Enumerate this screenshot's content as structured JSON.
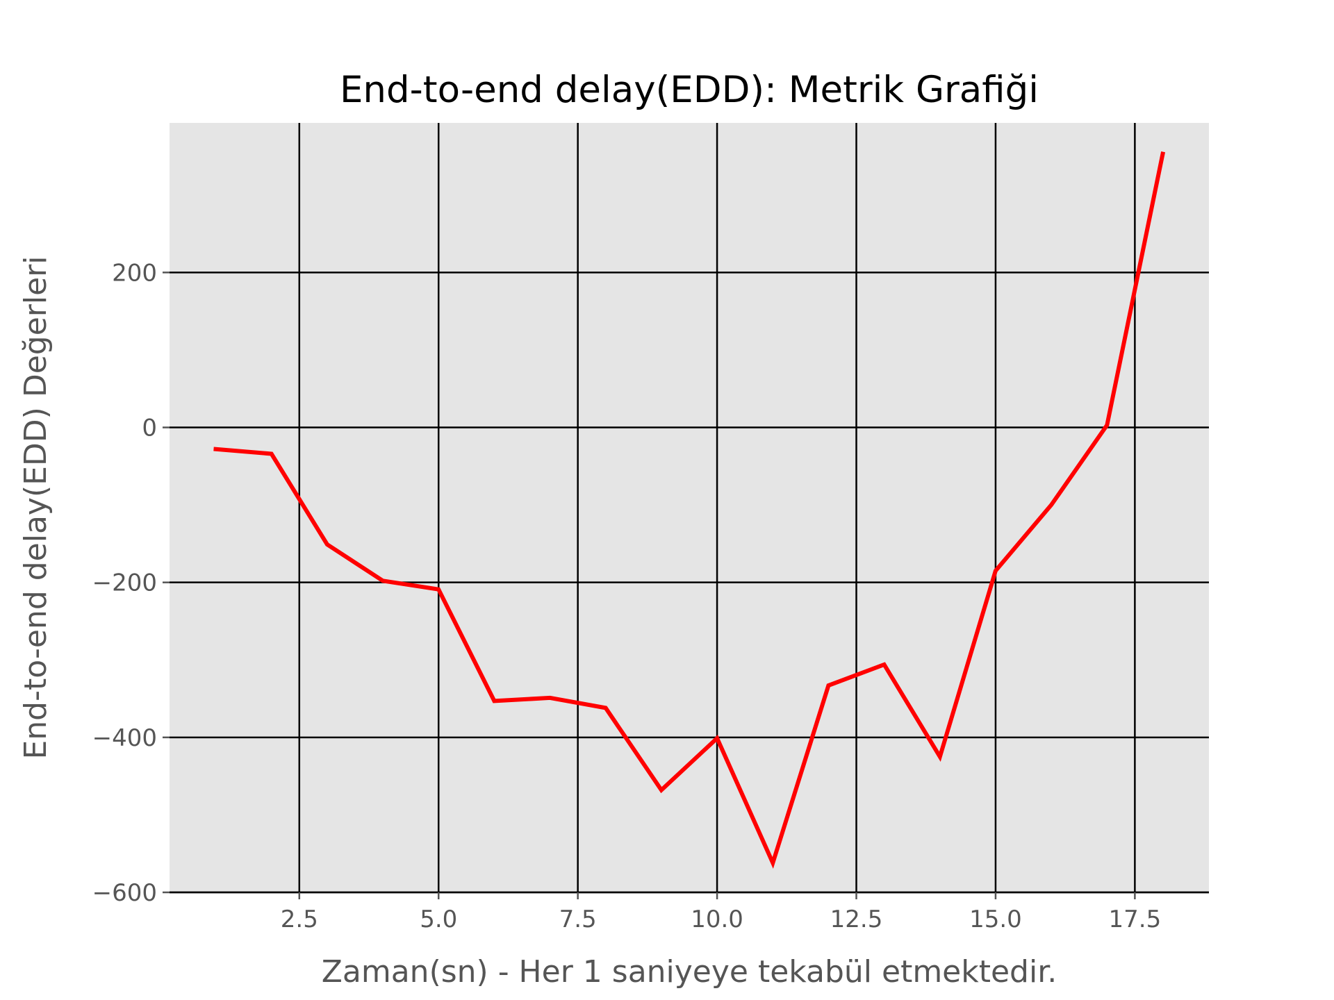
{
  "chart_data": {
    "type": "line",
    "title": "End-to-end delay(EDD): Metrik Grafiği",
    "xlabel": "Zaman(sn) - Her 1 saniyeye tekabül etmektedir.",
    "ylabel": "End-to-end delay(EDD) Değerleri",
    "xlim": [
      0.17,
      18.83
    ],
    "ylim": [
      -600,
      393
    ],
    "xticks": [
      2.5,
      5.0,
      7.5,
      10.0,
      12.5,
      15.0,
      17.5
    ],
    "xtick_labels": [
      "2.5",
      "5.0",
      "7.5",
      "10.0",
      "12.5",
      "15.0",
      "17.5"
    ],
    "yticks": [
      -600,
      -400,
      -200,
      0,
      200
    ],
    "ytick_labels": [
      "−600",
      "−400",
      "−200",
      "0",
      "200"
    ],
    "grid": true,
    "series": [
      {
        "color": "#ff0000",
        "x": [
          1,
          2,
          3,
          4,
          5,
          6,
          7,
          8,
          9,
          10,
          11,
          12,
          13,
          14,
          15,
          16,
          17,
          18
        ],
        "y": [
          -28,
          -34,
          -151,
          -198,
          -209,
          -353,
          -349,
          -362,
          -468,
          -401,
          -562,
          -333,
          -306,
          -425,
          -185,
          -100,
          3,
          353
        ]
      }
    ]
  },
  "colors": {
    "plot_background": "#e5e5e5",
    "grid": "#000000",
    "line": "#ff0000"
  }
}
